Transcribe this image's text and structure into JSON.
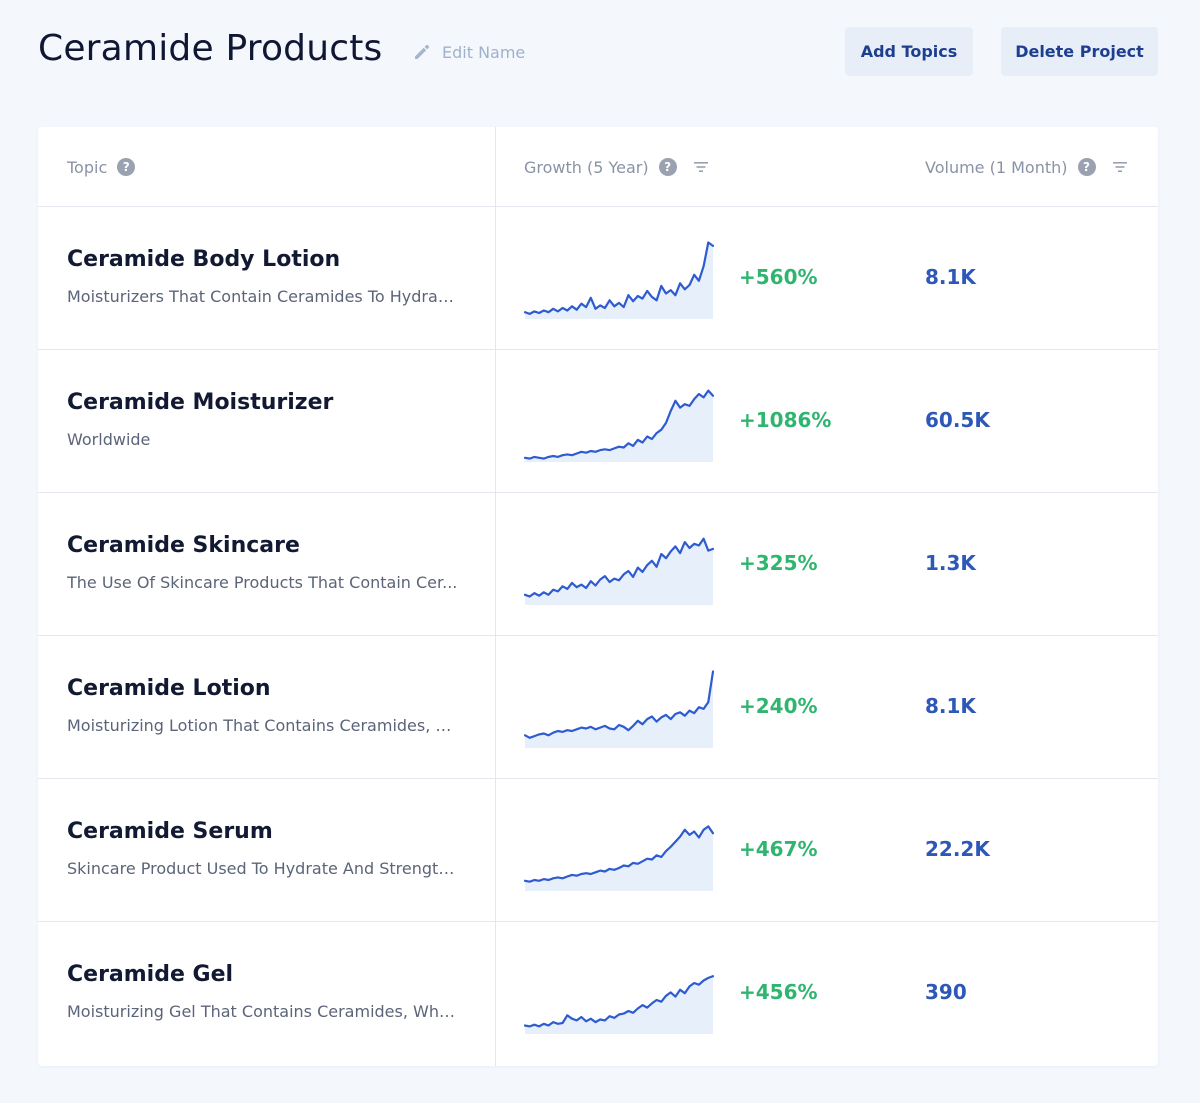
{
  "header": {
    "title": "Ceramide Products",
    "edit_name_label": "Edit Name",
    "add_topics_label": "Add Topics",
    "delete_project_label": "Delete Project"
  },
  "table": {
    "columns": {
      "topic": "Topic",
      "growth": "Growth (5 Year)",
      "volume": "Volume (1 Month)"
    },
    "colors": {
      "line": "#2d5bd0",
      "fill": "#e7effb",
      "growth": "#2fb56f",
      "volume": "#2d58b8"
    },
    "rows": [
      {
        "title": "Ceramide Body Lotion",
        "description": "Moisturizers That Contain Ceramides To Hydrat...",
        "growth": "+560%",
        "volume": "8.1K",
        "trend": [
          8,
          6,
          9,
          7,
          10,
          8,
          12,
          9,
          13,
          10,
          15,
          11,
          18,
          14,
          25,
          12,
          16,
          13,
          22,
          15,
          19,
          14,
          28,
          21,
          27,
          24,
          33,
          26,
          22,
          39,
          30,
          34,
          28,
          42,
          35,
          40,
          52,
          45,
          62,
          90,
          86
        ]
      },
      {
        "title": "Ceramide Moisturizer",
        "description": "Worldwide",
        "growth": "+1086%",
        "volume": "60.5K",
        "trend": [
          5,
          4,
          6,
          5,
          4,
          6,
          7,
          6,
          8,
          9,
          8,
          10,
          12,
          11,
          13,
          12,
          14,
          15,
          14,
          16,
          18,
          17,
          22,
          19,
          26,
          23,
          30,
          27,
          34,
          38,
          46,
          60,
          72,
          64,
          68,
          66,
          74,
          80,
          76,
          84,
          78
        ]
      },
      {
        "title": "Ceramide Skincare",
        "description": "The Use Of Skincare Products That Contain Cer...",
        "growth": "+325%",
        "volume": "1.3K",
        "trend": [
          12,
          10,
          14,
          11,
          15,
          12,
          18,
          16,
          22,
          19,
          26,
          21,
          24,
          20,
          28,
          23,
          30,
          34,
          27,
          31,
          29,
          36,
          40,
          33,
          44,
          39,
          47,
          52,
          45,
          60,
          55,
          63,
          69,
          61,
          74,
          67,
          72,
          70,
          78,
          64,
          66
        ]
      },
      {
        "title": "Ceramide Lotion",
        "description": "Moisturizing Lotion That Contains Ceramides, W...",
        "growth": "+240%",
        "volume": "8.1K",
        "trend": [
          15,
          12,
          14,
          16,
          17,
          15,
          18,
          20,
          19,
          21,
          20,
          22,
          24,
          23,
          25,
          22,
          24,
          26,
          23,
          22,
          27,
          25,
          21,
          26,
          32,
          28,
          34,
          37,
          31,
          36,
          39,
          34,
          40,
          42,
          38,
          44,
          41,
          48,
          46,
          54,
          90
        ]
      },
      {
        "title": "Ceramide Serum",
        "description": "Skincare Product Used To Hydrate And Strength...",
        "growth": "+467%",
        "volume": "22.2K",
        "trend": [
          12,
          11,
          13,
          12,
          14,
          13,
          15,
          16,
          15,
          17,
          19,
          18,
          20,
          21,
          20,
          22,
          24,
          23,
          26,
          25,
          27,
          30,
          29,
          33,
          32,
          35,
          38,
          37,
          42,
          40,
          47,
          52,
          58,
          64,
          72,
          66,
          70,
          63,
          72,
          76,
          68
        ]
      },
      {
        "title": "Ceramide Gel",
        "description": "Moisturizing Gel That Contains Ceramides, Whic...",
        "growth": "+456%",
        "volume": "390",
        "trend": [
          10,
          9,
          11,
          9,
          12,
          10,
          14,
          12,
          13,
          22,
          18,
          16,
          20,
          15,
          18,
          14,
          17,
          16,
          21,
          19,
          23,
          24,
          27,
          25,
          30,
          34,
          31,
          36,
          40,
          38,
          45,
          49,
          44,
          52,
          48,
          56,
          60,
          58,
          63,
          66,
          68
        ]
      }
    ]
  }
}
